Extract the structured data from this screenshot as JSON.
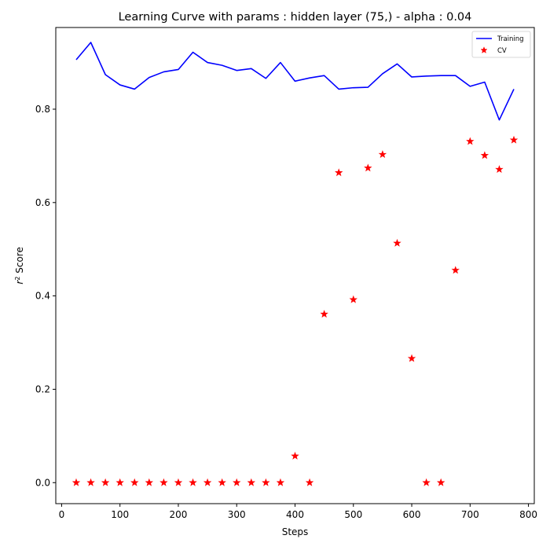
{
  "chart_data": {
    "type": "line",
    "title": "Learning Curve with params : hidden layer (75,) - alpha : 0.04",
    "xlabel": "Steps",
    "ylabel_base": "r",
    "ylabel_sup": "2",
    "ylabel_rest": " Score",
    "xlim": [
      -10,
      810
    ],
    "ylim": [
      -0.045,
      0.975
    ],
    "xticks": [
      0,
      100,
      200,
      300,
      400,
      500,
      600,
      700,
      800
    ],
    "yticks": [
      0.0,
      0.2,
      0.4,
      0.6,
      0.8
    ],
    "grid": false,
    "legend_position": "top-right",
    "x": [
      25,
      50,
      75,
      100,
      125,
      150,
      175,
      200,
      225,
      250,
      275,
      300,
      325,
      350,
      375,
      400,
      425,
      450,
      475,
      500,
      525,
      550,
      575,
      600,
      625,
      650,
      675,
      700,
      725,
      750,
      775
    ],
    "series": [
      {
        "name": "Training",
        "style": "line",
        "color": "#0000ff",
        "values": [
          0.906,
          0.943,
          0.874,
          0.852,
          0.843,
          0.868,
          0.88,
          0.885,
          0.922,
          0.9,
          0.894,
          0.883,
          0.887,
          0.866,
          0.9,
          0.86,
          0.867,
          0.872,
          0.843,
          0.846,
          0.847,
          0.876,
          0.897,
          0.869,
          0.871,
          0.872,
          0.872,
          0.849,
          0.858,
          0.777,
          0.843
        ]
      },
      {
        "name": "CV",
        "style": "marker",
        "marker": "star",
        "color": "#ff0000",
        "values": [
          0.0,
          0.0,
          0.0,
          0.0,
          0.0,
          0.0,
          0.0,
          0.0,
          0.0,
          0.0,
          0.0,
          0.0,
          0.0,
          0.0,
          0.0,
          0.057,
          0.0,
          0.361,
          0.664,
          0.392,
          0.674,
          0.703,
          0.513,
          0.266,
          0.0,
          0.0,
          0.455,
          0.731,
          0.701,
          0.671,
          0.734
        ]
      }
    ]
  }
}
